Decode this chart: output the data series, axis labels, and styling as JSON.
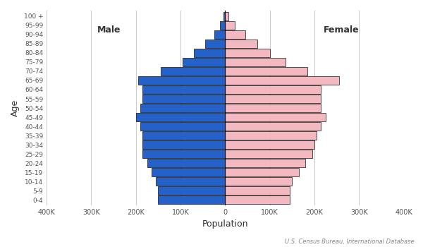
{
  "age_groups": [
    "0-4",
    "5-9",
    "10-14",
    "15-19",
    "20-24",
    "25-29",
    "30-34",
    "35-39",
    "40-44",
    "45-49",
    "50-54",
    "55-59",
    "60-64",
    "65-69",
    "70-74",
    "75-79",
    "80-84",
    "85-89",
    "90-94",
    "95-99",
    "100 +"
  ],
  "male": [
    150000,
    150000,
    155000,
    165000,
    175000,
    185000,
    185000,
    185000,
    190000,
    200000,
    190000,
    185000,
    185000,
    195000,
    145000,
    95000,
    70000,
    45000,
    25000,
    12000,
    3000
  ],
  "female": [
    145000,
    145000,
    150000,
    165000,
    180000,
    195000,
    200000,
    205000,
    215000,
    225000,
    215000,
    215000,
    215000,
    255000,
    185000,
    135000,
    100000,
    72000,
    45000,
    22000,
    8000
  ],
  "male_color": "#2461C8",
  "female_color": "#F4B8C1",
  "bar_edgecolor": "#111111",
  "background_color": "#ffffff",
  "xlabel": "Population",
  "ylabel": "Age",
  "xlim": 400000,
  "male_label": "Male",
  "female_label": "Female",
  "source_text": "U.S. Census Bureau, International Database",
  "bar_linewidth": 0.5,
  "grid_color": "#cccccc"
}
